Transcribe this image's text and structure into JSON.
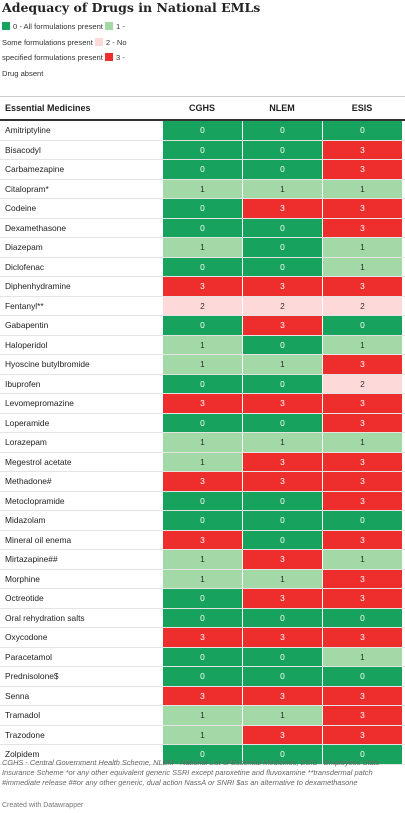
{
  "header": {
    "title": "Adequacy of Drugs in National EMLs"
  },
  "legend": [
    {
      "label": "0 - All formulations present",
      "color": "#17a35e",
      "text_color": "#ffffff"
    },
    {
      "label": "1 - Some formulations present",
      "color": "#a3d9a6",
      "text_color": "#333333"
    },
    {
      "label": "2 - No specified formulations present",
      "color": "#fdd9d9",
      "text_color": "#333333"
    },
    {
      "label": "3 - Drug absent",
      "color": "#ee2d2d",
      "text_color": "#ffffff"
    }
  ],
  "table": {
    "columns": [
      "Essential Medicines",
      "CGHS",
      "NLEM",
      "ESIS"
    ],
    "rows": [
      [
        "Amitriptyline",
        "0",
        "0",
        "0"
      ],
      [
        "Bisacodyl",
        "0",
        "0",
        "3"
      ],
      [
        "Carbamezapine",
        "0",
        "0",
        "3"
      ],
      [
        "Citalopram*",
        "1",
        "1",
        "1"
      ],
      [
        "Codeine",
        "0",
        "3",
        "3"
      ],
      [
        "Dexamethasone",
        "0",
        "0",
        "3"
      ],
      [
        "Diazepam",
        "1",
        "0",
        "1"
      ],
      [
        "Diclofenac",
        "0",
        "0",
        "1"
      ],
      [
        "Diphenhydramine",
        "3",
        "3",
        "3"
      ],
      [
        "Fentanyl**",
        "2",
        "2",
        "2"
      ],
      [
        "Gabapentin",
        "0",
        "3",
        "0"
      ],
      [
        "Haloperidol",
        "1",
        "0",
        "1"
      ],
      [
        "Hyoscine butylbromide",
        "1",
        "1",
        "3"
      ],
      [
        "Ibuprofen",
        "0",
        "0",
        "2"
      ],
      [
        "Levomepromazine",
        "3",
        "3",
        "3"
      ],
      [
        "Loperamide",
        "0",
        "0",
        "3"
      ],
      [
        "Lorazepam",
        "1",
        "1",
        "1"
      ],
      [
        "Megestrol acetate",
        "1",
        "3",
        "3"
      ],
      [
        "Methadone#",
        "3",
        "3",
        "3"
      ],
      [
        "Metoclopramide",
        "0",
        "0",
        "3"
      ],
      [
        "Midazolam",
        "0",
        "0",
        "0"
      ],
      [
        "Mineral oil enema",
        "3",
        "0",
        "3"
      ],
      [
        "Mirtazapine##",
        "1",
        "3",
        "1"
      ],
      [
        "Morphine",
        "1",
        "1",
        "3"
      ],
      [
        "Octreotide",
        "0",
        "3",
        "3"
      ],
      [
        "Oral rehydration salts",
        "0",
        "0",
        "0"
      ],
      [
        "Oxycodone",
        "3",
        "3",
        "3"
      ],
      [
        "Paracetamol",
        "0",
        "0",
        "1"
      ],
      [
        "Prednisolone$",
        "0",
        "0",
        "0"
      ],
      [
        "Senna",
        "3",
        "3",
        "3"
      ],
      [
        "Tramadol",
        "1",
        "1",
        "3"
      ],
      [
        "Trazodone",
        "1",
        "3",
        "3"
      ],
      [
        "Zolpidem",
        "0",
        "0",
        "0"
      ]
    ]
  },
  "footer": {
    "notes": "CGHS - Central Government Health Scheme, NLEM - National List of Essential Medicines, ESIS - Employees State Insurance Scheme *or any other equivalent generic SSRI except paroxetine and fluvoxamine **transdermal patch #immediate release ##or any other generic, dual action NassA or SNRI $as an alternative to dexamethasone",
    "credit": "Created with Datawrapper"
  }
}
